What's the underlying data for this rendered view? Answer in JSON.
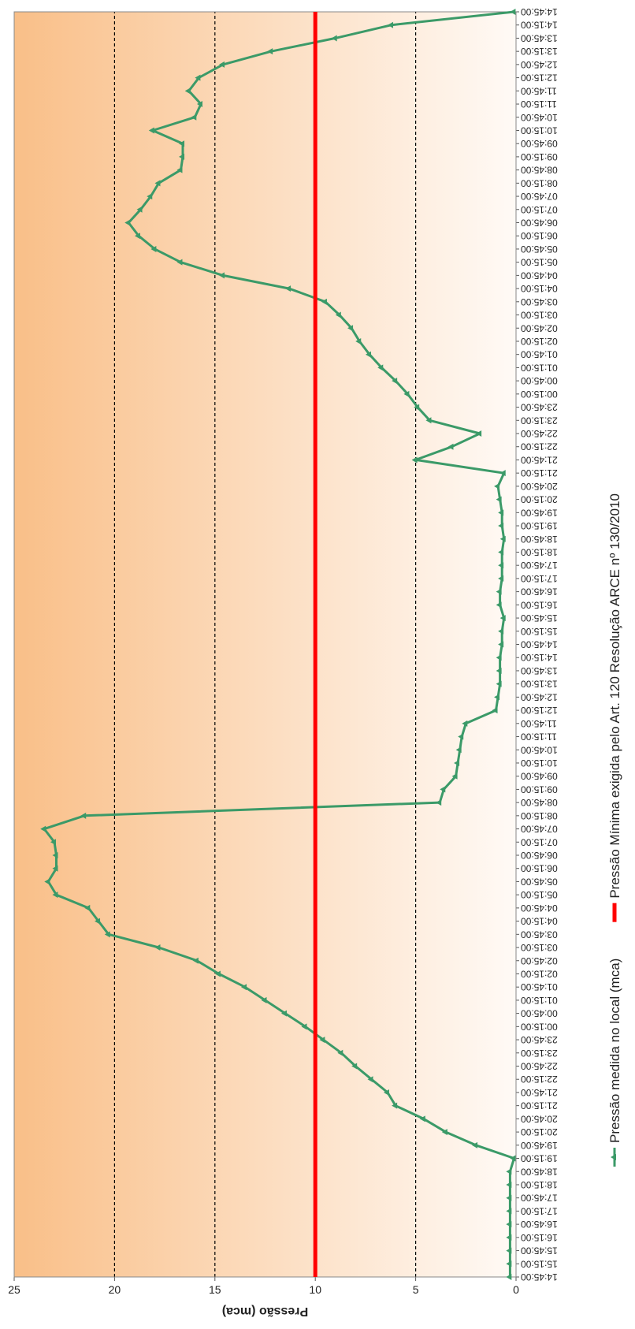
{
  "chart_data": {
    "type": "line",
    "y_label": "Pressão (mca)",
    "categories": [
      "14:45:00",
      "15:15:00",
      "15:45:00",
      "16:15:00",
      "16:45:00",
      "17:15:00",
      "17:45:00",
      "18:15:00",
      "18:45:00",
      "19:15:00",
      "19:45:00",
      "20:15:00",
      "20:45:00",
      "21:15:00",
      "21:45:00",
      "22:15:00",
      "22:45:00",
      "23:15:00",
      "23:45:00",
      "00:15:00",
      "00:45:00",
      "01:15:00",
      "01:45:00",
      "02:15:00",
      "02:45:00",
      "03:15:00",
      "03:45:00",
      "04:15:00",
      "04:45:00",
      "05:15:00",
      "05:45:00",
      "06:15:00",
      "06:45:00",
      "07:15:00",
      "07:45:00",
      "08:15:00",
      "08:45:00",
      "09:15:00",
      "09:45:00",
      "10:15:00",
      "10:45:00",
      "11:15:00",
      "11:45:00",
      "12:15:00",
      "12:45:00",
      "13:15:00",
      "13:45:00",
      "14:15:00",
      "14:45:00",
      "15:15:00",
      "15:45:00",
      "16:15:00",
      "16:45:00",
      "17:15:00",
      "17:45:00",
      "18:15:00",
      "18:45:00",
      "19:15:00",
      "19:45:00",
      "20:15:00",
      "20:45:00",
      "21:15:00",
      "21:45:00",
      "22:15:00",
      "22:45:00",
      "23:15:00",
      "23:45:00",
      "00:15:00",
      "00:45:00",
      "01:15:00",
      "01:45:00",
      "02:15:00",
      "02:45:00",
      "03:15:00",
      "03:45:00",
      "04:15:00",
      "04:45:00",
      "05:15:00",
      "05:45:00",
      "06:15:00",
      "06:45:00",
      "07:15:00",
      "07:45:00",
      "08:15:00",
      "08:45:00",
      "09:15:00",
      "09:45:00",
      "10:15:00",
      "10:45:00",
      "11:15:00",
      "11:45:00",
      "12:15:00",
      "12:45:00",
      "13:15:00",
      "13:45:00",
      "14:15:00",
      "14:45:00"
    ],
    "series": [
      {
        "name": "Pressão medida no local (mca)",
        "color": "#3b9a68",
        "marker": "triangle",
        "values": [
          0.3,
          0.3,
          0.3,
          0.3,
          0.3,
          0.3,
          0.3,
          0.3,
          0.3,
          0.1,
          2.0,
          3.5,
          4.6,
          6.0,
          6.4,
          7.2,
          8.0,
          8.7,
          9.6,
          10.5,
          11.5,
          12.5,
          13.5,
          14.8,
          15.9,
          17.8,
          20.3,
          20.8,
          21.3,
          22.9,
          23.3,
          22.9,
          22.9,
          23.0,
          23.5,
          21.5,
          3.8,
          3.6,
          3.0,
          2.9,
          2.8,
          2.7,
          2.5,
          1.0,
          0.9,
          0.8,
          0.8,
          0.8,
          0.7,
          0.7,
          0.6,
          0.8,
          0.8,
          0.7,
          0.7,
          0.7,
          0.6,
          0.7,
          0.7,
          0.8,
          0.9,
          0.6,
          5.0,
          3.2,
          1.8,
          4.3,
          4.9,
          5.4,
          6.0,
          6.7,
          7.3,
          7.8,
          8.2,
          8.8,
          9.5,
          11.3,
          14.6,
          16.7,
          18.0,
          18.8,
          19.3,
          18.7,
          18.2,
          17.8,
          16.7,
          16.6,
          16.6,
          18.1,
          16.0,
          15.7,
          16.3,
          15.8,
          14.6,
          12.2,
          9.0,
          6.2,
          0.1
        ]
      },
      {
        "name": "Pressão Mínima exigida pelo Art. 120 Resolução ARCE nº 130/2010",
        "color": "#ff0000",
        "values": [
          10,
          10,
          10,
          10,
          10,
          10,
          10,
          10,
          10,
          10,
          10,
          10,
          10,
          10,
          10,
          10,
          10,
          10,
          10,
          10,
          10,
          10,
          10,
          10,
          10,
          10,
          10,
          10,
          10,
          10,
          10,
          10,
          10,
          10,
          10,
          10,
          10,
          10,
          10,
          10,
          10,
          10,
          10,
          10,
          10,
          10,
          10,
          10,
          10,
          10,
          10,
          10,
          10,
          10,
          10,
          10,
          10,
          10,
          10,
          10,
          10,
          10,
          10,
          10,
          10,
          10,
          10,
          10,
          10,
          10,
          10,
          10,
          10,
          10,
          10,
          10,
          10,
          10,
          10,
          10,
          10,
          10,
          10,
          10,
          10,
          10,
          10,
          10,
          10,
          10,
          10,
          10,
          10,
          10,
          10,
          10,
          10
        ]
      }
    ],
    "ylim": [
      0,
      25
    ],
    "yticks": [
      0,
      5,
      10,
      15,
      20,
      25
    ],
    "grid": true,
    "background": [
      "#f9bf88",
      "#fffaf6"
    ],
    "legend": "bottom"
  }
}
